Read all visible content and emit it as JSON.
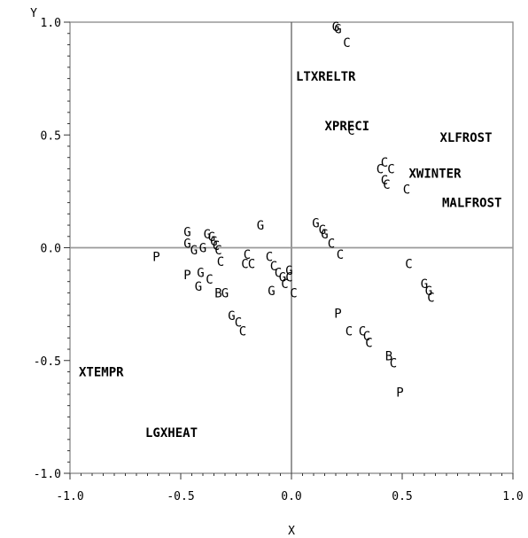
{
  "chart_data": {
    "type": "scatter",
    "xlabel": "X",
    "ylabel": "Y",
    "xlim": [
      -1.0,
      1.0
    ],
    "ylim": [
      -1.0,
      1.0
    ],
    "x_ticks": [
      "-1.0",
      "-0.5",
      "0.0",
      "0.5",
      "1.0"
    ],
    "y_ticks": [
      "1.0",
      "0.5",
      "0.0",
      "-0.5",
      "-1.0"
    ],
    "x_tick_values": [
      -1.0,
      -0.5,
      0.0,
      0.5,
      1.0
    ],
    "y_tick_values": [
      1.0,
      0.5,
      0.0,
      -0.5,
      -1.0
    ],
    "reference_lines": {
      "x": 0,
      "y": 0
    },
    "grid": false,
    "variable_labels": [
      {
        "text": "LTXRELTR",
        "x": 0.02,
        "y": 0.76
      },
      {
        "text": "XPRECI",
        "x": 0.15,
        "y": 0.54
      },
      {
        "text": "XLFROST",
        "x": 0.67,
        "y": 0.49
      },
      {
        "text": "XWINTER",
        "x": 0.53,
        "y": 0.33
      },
      {
        "text": "MALFROST",
        "x": 0.68,
        "y": 0.2
      },
      {
        "text": "XTEMPR",
        "x": -0.96,
        "y": -0.55
      },
      {
        "text": "LGXHEAT",
        "x": -0.66,
        "y": -0.82
      }
    ],
    "points": [
      {
        "label": "G",
        "x": 0.2,
        "y": 0.98
      },
      {
        "label": "G",
        "x": 0.21,
        "y": 0.97
      },
      {
        "label": "C",
        "x": 0.25,
        "y": 0.91
      },
      {
        "label": "C",
        "x": 0.27,
        "y": 0.52
      },
      {
        "label": "C",
        "x": 0.42,
        "y": 0.38
      },
      {
        "label": "C",
        "x": 0.4,
        "y": 0.35
      },
      {
        "label": "C",
        "x": 0.45,
        "y": 0.35
      },
      {
        "label": "C",
        "x": 0.42,
        "y": 0.3
      },
      {
        "label": "C",
        "x": 0.43,
        "y": 0.28
      },
      {
        "label": "C",
        "x": 0.52,
        "y": 0.26
      },
      {
        "label": "G",
        "x": 0.11,
        "y": 0.11
      },
      {
        "label": "G",
        "x": 0.14,
        "y": 0.08
      },
      {
        "label": "G",
        "x": 0.15,
        "y": 0.06
      },
      {
        "label": "C",
        "x": 0.18,
        "y": 0.02
      },
      {
        "label": "C",
        "x": 0.22,
        "y": -0.03
      },
      {
        "label": "C",
        "x": 0.53,
        "y": -0.07
      },
      {
        "label": "G",
        "x": 0.6,
        "y": -0.16
      },
      {
        "label": "G",
        "x": 0.62,
        "y": -0.19
      },
      {
        "label": "C",
        "x": 0.63,
        "y": -0.22
      },
      {
        "label": "P",
        "x": 0.21,
        "y": -0.29
      },
      {
        "label": "C",
        "x": 0.26,
        "y": -0.37
      },
      {
        "label": "C",
        "x": 0.32,
        "y": -0.37
      },
      {
        "label": "C",
        "x": 0.34,
        "y": -0.39
      },
      {
        "label": "C",
        "x": 0.35,
        "y": -0.42
      },
      {
        "label": "B",
        "x": 0.44,
        "y": -0.48
      },
      {
        "label": "C",
        "x": 0.46,
        "y": -0.51
      },
      {
        "label": "P",
        "x": 0.49,
        "y": -0.64
      },
      {
        "label": "G",
        "x": -0.47,
        "y": 0.07
      },
      {
        "label": "G",
        "x": -0.47,
        "y": 0.02
      },
      {
        "label": "G",
        "x": -0.44,
        "y": -0.01
      },
      {
        "label": "G",
        "x": -0.4,
        "y": 0.0
      },
      {
        "label": "G",
        "x": -0.38,
        "y": 0.06
      },
      {
        "label": "G",
        "x": -0.36,
        "y": 0.05
      },
      {
        "label": "G",
        "x": -0.35,
        "y": 0.03
      },
      {
        "label": "C",
        "x": -0.34,
        "y": 0.01
      },
      {
        "label": "C",
        "x": -0.33,
        "y": -0.01
      },
      {
        "label": "C",
        "x": -0.32,
        "y": -0.06
      },
      {
        "label": "G",
        "x": -0.14,
        "y": 0.1
      },
      {
        "label": "C",
        "x": -0.2,
        "y": -0.03
      },
      {
        "label": "C",
        "x": -0.21,
        "y": -0.07
      },
      {
        "label": "C",
        "x": -0.18,
        "y": -0.07
      },
      {
        "label": "C",
        "x": -0.1,
        "y": -0.04
      },
      {
        "label": "C",
        "x": -0.08,
        "y": -0.08
      },
      {
        "label": "C",
        "x": -0.06,
        "y": -0.11
      },
      {
        "label": "G",
        "x": -0.04,
        "y": -0.13
      },
      {
        "label": "C",
        "x": -0.03,
        "y": -0.16
      },
      {
        "label": "C",
        "x": -0.01,
        "y": -0.13
      },
      {
        "label": "G",
        "x": -0.01,
        "y": -0.1
      },
      {
        "label": "C",
        "x": 0.01,
        "y": -0.2
      },
      {
        "label": "P",
        "x": -0.61,
        "y": -0.04
      },
      {
        "label": "P",
        "x": -0.47,
        "y": -0.12
      },
      {
        "label": "G",
        "x": -0.41,
        "y": -0.11
      },
      {
        "label": "C",
        "x": -0.37,
        "y": -0.14
      },
      {
        "label": "G",
        "x": -0.42,
        "y": -0.17
      },
      {
        "label": "B",
        "x": -0.33,
        "y": -0.2
      },
      {
        "label": "G",
        "x": -0.3,
        "y": -0.2
      },
      {
        "label": "G",
        "x": -0.09,
        "y": -0.19
      },
      {
        "label": "G",
        "x": -0.27,
        "y": -0.3
      },
      {
        "label": "C",
        "x": -0.24,
        "y": -0.33
      },
      {
        "label": "C",
        "x": -0.22,
        "y": -0.37
      }
    ]
  }
}
